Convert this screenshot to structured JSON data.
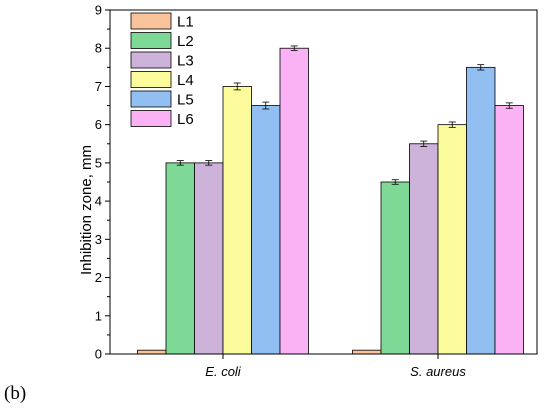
{
  "panel_label": "(b)",
  "chart_data": {
    "type": "bar",
    "categories": [
      "E. coli",
      "S. aureus"
    ],
    "ylabel": "Inhibition zone, mm",
    "xlabel": "",
    "ylim": [
      0,
      9
    ],
    "yticks": [
      0,
      1,
      2,
      3,
      4,
      5,
      6,
      7,
      8,
      9
    ],
    "legend_position": "top-left",
    "grid": false,
    "series": [
      {
        "name": "L1",
        "color": "#f9c39b",
        "values": [
          0.1,
          0.1
        ],
        "errors": [
          0.0,
          0.0
        ]
      },
      {
        "name": "L2",
        "color": "#7fd996",
        "values": [
          5.0,
          4.5
        ],
        "errors": [
          0.06,
          0.06
        ]
      },
      {
        "name": "L3",
        "color": "#cdb2da",
        "values": [
          5.0,
          5.5
        ],
        "errors": [
          0.06,
          0.07
        ]
      },
      {
        "name": "L4",
        "color": "#fbfb9b",
        "values": [
          7.0,
          6.0
        ],
        "errors": [
          0.09,
          0.07
        ]
      },
      {
        "name": "L5",
        "color": "#92bff2",
        "values": [
          6.5,
          7.5
        ],
        "errors": [
          0.09,
          0.07
        ]
      },
      {
        "name": "L6",
        "color": "#fbb2f4",
        "values": [
          8.0,
          6.5
        ],
        "errors": [
          0.06,
          0.07
        ]
      }
    ]
  }
}
